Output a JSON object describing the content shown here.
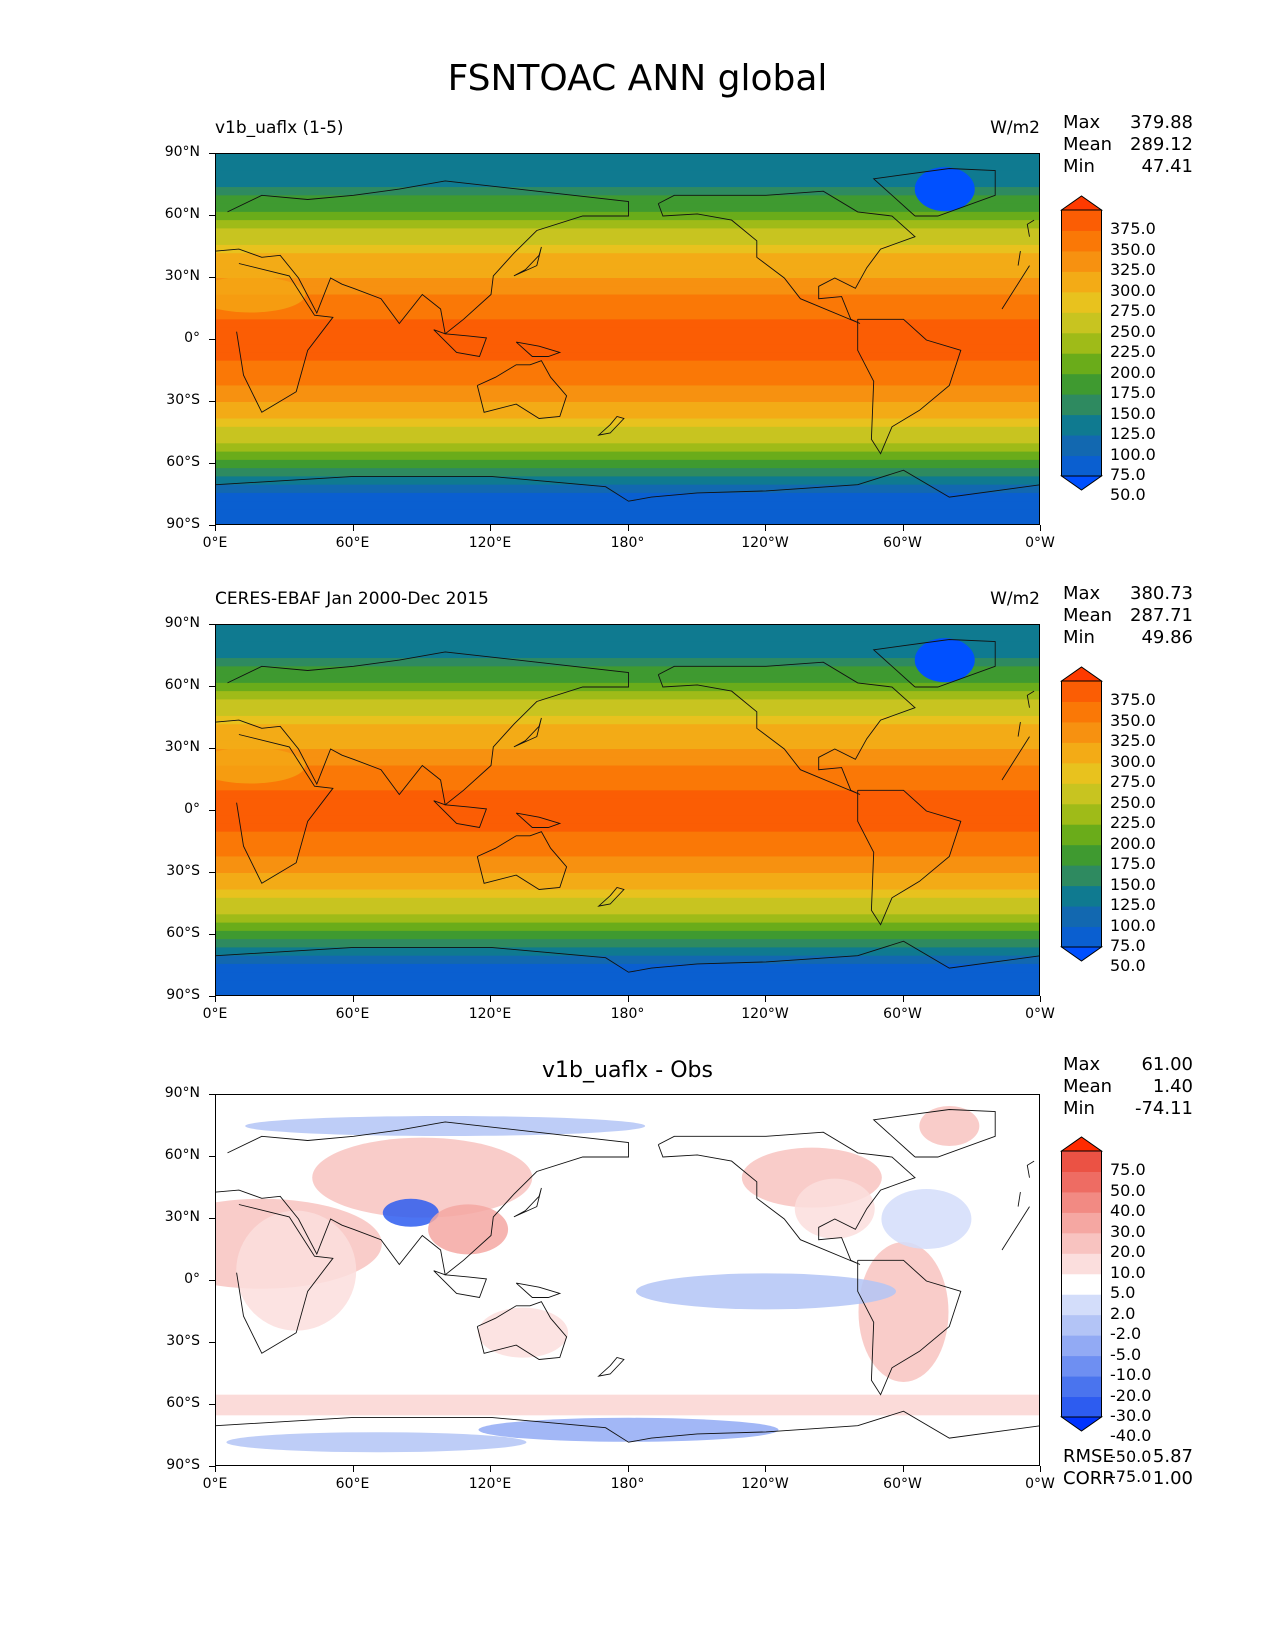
{
  "title": "FSNTOAC ANN global",
  "panels": [
    {
      "title": "v1b_uaflx (1-5)",
      "units": "W/m2",
      "stats": {
        "max_label": "Max",
        "max": "379.88",
        "mean_label": "Mean",
        "mean": "289.12",
        "min_label": "Min",
        "min": "47.41"
      },
      "colorbar_labels": [
        "375.0",
        "350.0",
        "325.0",
        "300.0",
        "275.0",
        "250.0",
        "225.0",
        "200.0",
        "175.0",
        "150.0",
        "125.0",
        "100.0",
        "75.0",
        "50.0"
      ]
    },
    {
      "title": "CERES-EBAF Jan 2000-Dec 2015",
      "units": "W/m2",
      "stats": {
        "max_label": "Max",
        "max": "380.73",
        "mean_label": "Mean",
        "mean": "287.71",
        "min_label": "Min",
        "min": "49.86"
      },
      "colorbar_labels": [
        "375.0",
        "350.0",
        "325.0",
        "300.0",
        "275.0",
        "250.0",
        "225.0",
        "200.0",
        "175.0",
        "150.0",
        "125.0",
        "100.0",
        "75.0",
        "50.0"
      ]
    },
    {
      "title": "v1b_uaflx - Obs",
      "units": "",
      "stats": {
        "max_label": "Max",
        "max": "61.00",
        "mean_label": "Mean",
        "mean": "1.40",
        "min_label": "Min",
        "min": "-74.11"
      },
      "colorbar_labels": [
        "75.0",
        "50.0",
        "40.0",
        "30.0",
        "20.0",
        "10.0",
        "5.0",
        "2.0",
        "-2.0",
        "-5.0",
        "-10.0",
        "-20.0",
        "-30.0",
        "-40.0",
        "-50.0",
        "-75.0"
      ],
      "rmse_label": "RMSE",
      "rmse": "5.87",
      "corr_label": "CORR",
      "corr": "1.00"
    }
  ],
  "axes": {
    "yticks": [
      "90°N",
      "60°N",
      "30°N",
      "0°",
      "30°S",
      "60°S",
      "90°S"
    ],
    "xticks": [
      "0°E",
      "60°E",
      "120°E",
      "180°",
      "120°W",
      "60°W",
      "0°W"
    ]
  },
  "colors": {
    "abs_scale": [
      "#0050ff",
      "#0a5fd0",
      "#1268b0",
      "#0f7a90",
      "#2e8a60",
      "#3f9a30",
      "#6aac1a",
      "#9fbb18",
      "#c8c420",
      "#e8c21e",
      "#f3ab16",
      "#f79110",
      "#fa7806",
      "#fb5d04",
      "#fe3a00"
    ],
    "diff_scale": [
      "#0033ff",
      "#2d5cf0",
      "#4a74ee",
      "#6e8ff2",
      "#92aaf4",
      "#b3c4f6",
      "#d3ddfa",
      "#ffffff",
      "#fbdedd",
      "#f8c3c0",
      "#f5a7a2",
      "#f28a83",
      "#ee6c63",
      "#eb5244",
      "#ff2a00"
    ]
  },
  "chart_data": [
    {
      "type": "heatmap",
      "title": "v1b_uaflx (1-5)",
      "units": "W/m2",
      "xlim": [
        0,
        360
      ],
      "ylim": [
        -90,
        90
      ],
      "zonal_mean_profile": {
        "lat": [
          90,
          75,
          60,
          45,
          30,
          15,
          0,
          -15,
          -30,
          -45,
          -60,
          -75,
          -90
        ],
        "value": [
          110,
          120,
          190,
          260,
          305,
          345,
          365,
          345,
          300,
          245,
          160,
          70,
          60
        ]
      },
      "levels": [
        50,
        75,
        100,
        125,
        150,
        175,
        200,
        225,
        250,
        275,
        300,
        325,
        350,
        375
      ],
      "max": 379.88,
      "mean": 289.12,
      "min": 47.41
    },
    {
      "type": "heatmap",
      "title": "CERES-EBAF Jan 2000-Dec 2015",
      "units": "W/m2",
      "xlim": [
        0,
        360
      ],
      "ylim": [
        -90,
        90
      ],
      "zonal_mean_profile": {
        "lat": [
          90,
          75,
          60,
          45,
          30,
          15,
          0,
          -15,
          -30,
          -45,
          -60,
          -75,
          -90
        ],
        "value": [
          110,
          120,
          185,
          260,
          305,
          345,
          365,
          345,
          300,
          245,
          165,
          65,
          60
        ]
      },
      "levels": [
        50,
        75,
        100,
        125,
        150,
        175,
        200,
        225,
        250,
        275,
        300,
        325,
        350,
        375
      ],
      "max": 380.73,
      "mean": 287.71,
      "min": 49.86
    },
    {
      "type": "heatmap",
      "title": "v1b_uaflx - Obs",
      "xlim": [
        0,
        360
      ],
      "ylim": [
        -90,
        90
      ],
      "levels": [
        -75,
        -50,
        -40,
        -30,
        -20,
        -10,
        -5,
        -2,
        2,
        5,
        10,
        20,
        30,
        40,
        50,
        75
      ],
      "max": 61.0,
      "mean": 1.4,
      "min": -74.11,
      "rmse": 5.87,
      "corr": 1.0
    }
  ]
}
